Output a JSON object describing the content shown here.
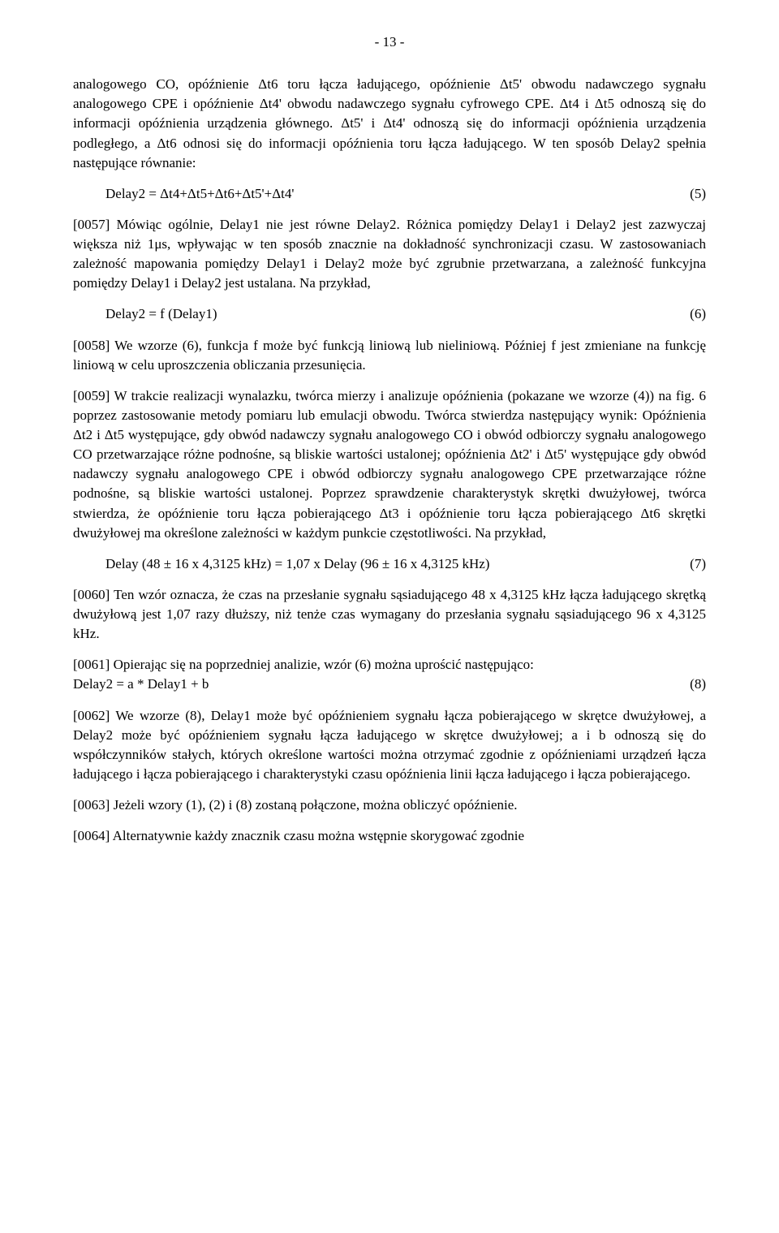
{
  "page_number": "- 13 -",
  "p1": "analogowego CO, opóźnienie Δt6 toru łącza ładującego, opóźnienie Δt5' obwodu nadawczego sygnału analogowego CPE i opóźnienie Δt4' obwodu nadawczego sygnału cyfrowego CPE. Δt4 i Δt5 odnoszą się do informacji opóźnienia urządzenia głównego. Δt5' i Δt4' odnoszą się do informacji opóźnienia urządzenia podległego, a Δt6 odnosi się do informacji opóźnienia toru łącza ładującego. W ten sposób Delay2 spełnia następujące równanie:",
  "eq5_text": "Delay2 = Δt4+Δt5+Δt6+Δt5'+Δt4'",
  "eq5_num": "(5)",
  "p2": "[0057] Mówiąc ogólnie, Delay1 nie jest równe Delay2. Różnica pomiędzy Delay1 i Delay2 jest zazwyczaj większa niż 1μs, wpływając w ten sposób znacznie na dokładność synchronizacji czasu. W zastosowaniach zależność mapowania pomiędzy Delay1 i Delay2 może być zgrubnie przetwarzana, a zależność funkcyjna pomiędzy Delay1 i Delay2 jest ustalana. Na przykład,",
  "eq6_text": "Delay2 = f (Delay1)",
  "eq6_num": "(6)",
  "p3": "[0058] We wzorze (6), funkcja f może być funkcją liniową lub nieliniową. Później f jest zmieniane na funkcję liniową w celu uproszczenia obliczania przesunięcia.",
  "p4": "[0059] W trakcie realizacji wynalazku, twórca mierzy i analizuje opóźnienia (pokazane we wzorze (4)) na fig. 6 poprzez zastosowanie metody pomiaru lub emulacji obwodu. Twórca stwierdza następujący wynik: Opóźnienia Δt2 i Δt5 występujące, gdy obwód nadawczy sygnału analogowego CO i obwód odbiorczy sygnału analogowego CO przetwarzające różne podnośne, są bliskie wartości ustalonej; opóźnienia Δt2' i Δt5' występujące gdy obwód nadawczy sygnału analogowego CPE i obwód odbiorczy sygnału analogowego CPE przetwarzające różne podnośne, są bliskie wartości ustalonej. Poprzez sprawdzenie charakterystyk skrętki dwużyłowej, twórca stwierdza, że opóźnienie toru łącza pobierającego Δt3 i opóźnienie toru łącza pobierającego Δt6 skrętki dwużyłowej ma określone zależności w każdym punkcie częstotliwości. Na przykład,",
  "eq7_text": "Delay (48 ± 16 x 4,3125 kHz) = 1,07 x Delay (96 ± 16 x 4,3125 kHz)",
  "eq7_num": "(7)",
  "p5": "[0060] Ten wzór oznacza, że czas na przesłanie sygnału sąsiadującego 48 x 4,3125 kHz łącza ładującego skrętką dwużyłową jest 1,07 razy dłuższy, niż tenże czas wymagany do przesłania sygnału sąsiadującego 96 x 4,3125 kHz.",
  "p6a": "[0061] Opierając się na poprzedniej analizie, wzór (6) można uprościć następująco:",
  "eq8_text": "Delay2 = a * Delay1 + b",
  "eq8_num": "(8)",
  "p7": "[0062] We wzorze (8), Delay1 może być opóźnieniem sygnału łącza pobierającego w skrętce dwużyłowej, a Delay2 może być opóźnieniem sygnału łącza ładującego w skrętce dwużyłowej; a i b odnoszą się do współczynników stałych, których określone wartości można otrzymać zgodnie z opóźnieniami urządzeń łącza ładującego i łącza pobierającego i charakterystyki czasu opóźnienia linii łącza ładującego i łącza pobierającego.",
  "p8": "[0063] Jeżeli wzory (1), (2) i (8) zostaną połączone, można obliczyć opóźnienie.",
  "p9": "[0064] Alternatywnie każdy znacznik czasu można wstępnie skorygować zgodnie"
}
